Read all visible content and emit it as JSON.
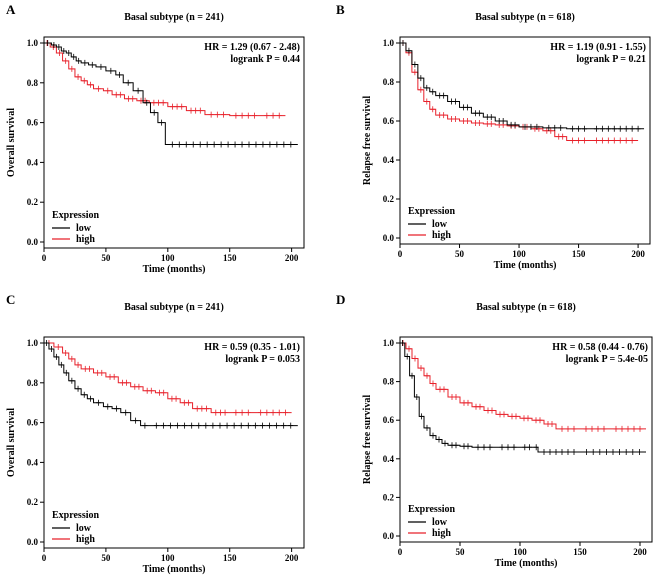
{
  "chart_data": [
    {
      "panel": "A",
      "type": "line",
      "title": "Basal subtype (n = 241)",
      "xlabel": "Time (months)",
      "ylabel": "Overall survival",
      "xlim": [
        0,
        210
      ],
      "ylim": [
        0,
        1.0
      ],
      "xticks": [
        "0",
        "50",
        "100",
        "150",
        "200"
      ],
      "yticks": [
        "0.0",
        "0.2",
        "0.4",
        "0.6",
        "0.8",
        "1.0"
      ],
      "stats": [
        "HR = 1.29 (0.67 - 2.48)",
        "logrank P = 0.44"
      ],
      "legend": {
        "title": "Expression",
        "low_label": "low",
        "high_label": "high"
      },
      "series": [
        {
          "name": "low",
          "color": "#000000",
          "x": [
            0,
            6,
            10,
            14,
            18,
            22,
            26,
            30,
            36,
            42,
            50,
            58,
            64,
            72,
            80,
            86,
            92,
            98,
            205
          ],
          "y": [
            1.0,
            0.99,
            0.98,
            0.96,
            0.95,
            0.93,
            0.91,
            0.9,
            0.89,
            0.88,
            0.86,
            0.84,
            0.8,
            0.76,
            0.7,
            0.65,
            0.6,
            0.49,
            0.49
          ]
        },
        {
          "name": "high",
          "color": "#e8202a",
          "x": [
            0,
            5,
            10,
            15,
            20,
            25,
            30,
            35,
            40,
            48,
            55,
            65,
            75,
            85,
            100,
            115,
            130,
            150,
            175,
            195
          ],
          "y": [
            1.0,
            0.98,
            0.95,
            0.91,
            0.87,
            0.83,
            0.81,
            0.79,
            0.77,
            0.76,
            0.74,
            0.72,
            0.71,
            0.7,
            0.68,
            0.66,
            0.64,
            0.635,
            0.635,
            0.635
          ]
        }
      ]
    },
    {
      "panel": "B",
      "type": "line",
      "title": "Basal subtype (n = 618)",
      "xlabel": "Time (months)",
      "ylabel": "Relapse free survival",
      "xlim": [
        0,
        210
      ],
      "ylim": [
        0,
        1.0
      ],
      "xticks": [
        "0",
        "50",
        "100",
        "150",
        "200"
      ],
      "yticks": [
        "0.0",
        "0.2",
        "0.4",
        "0.6",
        "0.8",
        "1.0"
      ],
      "stats": [
        "HR = 1.19 (0.91 - 1.55)",
        "logrank P = 0.21"
      ],
      "legend": {
        "title": "Expression",
        "low_label": "low",
        "high_label": "high"
      },
      "series": [
        {
          "name": "low",
          "color": "#000000",
          "x": [
            0,
            5,
            10,
            15,
            20,
            25,
            30,
            40,
            50,
            60,
            70,
            80,
            90,
            100,
            120,
            140,
            160,
            205
          ],
          "y": [
            1.0,
            0.96,
            0.89,
            0.82,
            0.77,
            0.75,
            0.73,
            0.7,
            0.67,
            0.64,
            0.62,
            0.6,
            0.58,
            0.57,
            0.565,
            0.56,
            0.56,
            0.56
          ]
        },
        {
          "name": "high",
          "color": "#e8202a",
          "x": [
            0,
            5,
            10,
            15,
            20,
            25,
            30,
            40,
            50,
            60,
            70,
            80,
            90,
            100,
            110,
            120,
            130,
            140,
            160,
            200
          ],
          "y": [
            1.0,
            0.95,
            0.85,
            0.76,
            0.7,
            0.66,
            0.63,
            0.61,
            0.6,
            0.59,
            0.585,
            0.58,
            0.575,
            0.57,
            0.56,
            0.55,
            0.52,
            0.5,
            0.5,
            0.5
          ]
        }
      ]
    },
    {
      "panel": "C",
      "type": "line",
      "title": "Basal subtype (n = 241)",
      "xlabel": "Time (months)",
      "ylabel": "Overall survival",
      "xlim": [
        0,
        210
      ],
      "ylim": [
        0,
        1.0
      ],
      "xticks": [
        "0",
        "50",
        "100",
        "150",
        "200"
      ],
      "yticks": [
        "0.0",
        "0.2",
        "0.4",
        "0.6",
        "0.8",
        "1.0"
      ],
      "stats": [
        "HR = 0.59 (0.35 - 1.01)",
        "logrank P = 0.053"
      ],
      "legend": {
        "title": "Expression",
        "low_label": "low",
        "high_label": "high"
      },
      "series": [
        {
          "name": "low",
          "color": "#000000",
          "x": [
            0,
            4,
            8,
            12,
            16,
            20,
            25,
            30,
            35,
            40,
            48,
            55,
            62,
            70,
            78,
            85,
            205
          ],
          "y": [
            1.0,
            0.97,
            0.93,
            0.89,
            0.85,
            0.81,
            0.77,
            0.74,
            0.72,
            0.7,
            0.68,
            0.67,
            0.65,
            0.61,
            0.585,
            0.585,
            0.585
          ]
        },
        {
          "name": "high",
          "color": "#e8202a",
          "x": [
            0,
            8,
            15,
            20,
            25,
            30,
            40,
            50,
            60,
            70,
            80,
            90,
            100,
            110,
            120,
            135,
            150,
            170,
            200
          ],
          "y": [
            1.0,
            0.98,
            0.95,
            0.92,
            0.89,
            0.87,
            0.85,
            0.83,
            0.8,
            0.78,
            0.76,
            0.75,
            0.72,
            0.7,
            0.67,
            0.65,
            0.65,
            0.65,
            0.65
          ]
        }
      ]
    },
    {
      "panel": "D",
      "type": "line",
      "title": "Basal subtype (n = 618)",
      "xlabel": "Time (months)",
      "ylabel": "Relapse free survival",
      "xlim": [
        0,
        210
      ],
      "ylim": [
        0,
        1.0
      ],
      "xticks": [
        "0",
        "50",
        "100",
        "150",
        "200"
      ],
      "yticks": [
        "0.0",
        "0.2",
        "0.4",
        "0.6",
        "0.8",
        "1.0"
      ],
      "stats": [
        "HR = 0.58 (0.44 - 0.76)",
        "logrank P = 5.4e-05"
      ],
      "legend": {
        "title": "Expression",
        "low_label": "low",
        "high_label": "high"
      },
      "series": [
        {
          "name": "low",
          "color": "#000000",
          "x": [
            0,
            4,
            8,
            12,
            16,
            20,
            25,
            30,
            35,
            40,
            50,
            60,
            80,
            100,
            112,
            115,
            150,
            205
          ],
          "y": [
            1.0,
            0.93,
            0.83,
            0.72,
            0.62,
            0.56,
            0.52,
            0.5,
            0.48,
            0.47,
            0.465,
            0.46,
            0.46,
            0.46,
            0.46,
            0.435,
            0.435,
            0.435
          ]
        },
        {
          "name": "high",
          "color": "#e8202a",
          "x": [
            0,
            5,
            10,
            15,
            20,
            25,
            30,
            40,
            50,
            60,
            70,
            80,
            90,
            100,
            110,
            120,
            130,
            150,
            175,
            205
          ],
          "y": [
            1.0,
            0.97,
            0.92,
            0.87,
            0.83,
            0.79,
            0.76,
            0.72,
            0.69,
            0.67,
            0.65,
            0.63,
            0.62,
            0.61,
            0.6,
            0.58,
            0.555,
            0.555,
            0.555,
            0.555
          ]
        }
      ]
    }
  ]
}
